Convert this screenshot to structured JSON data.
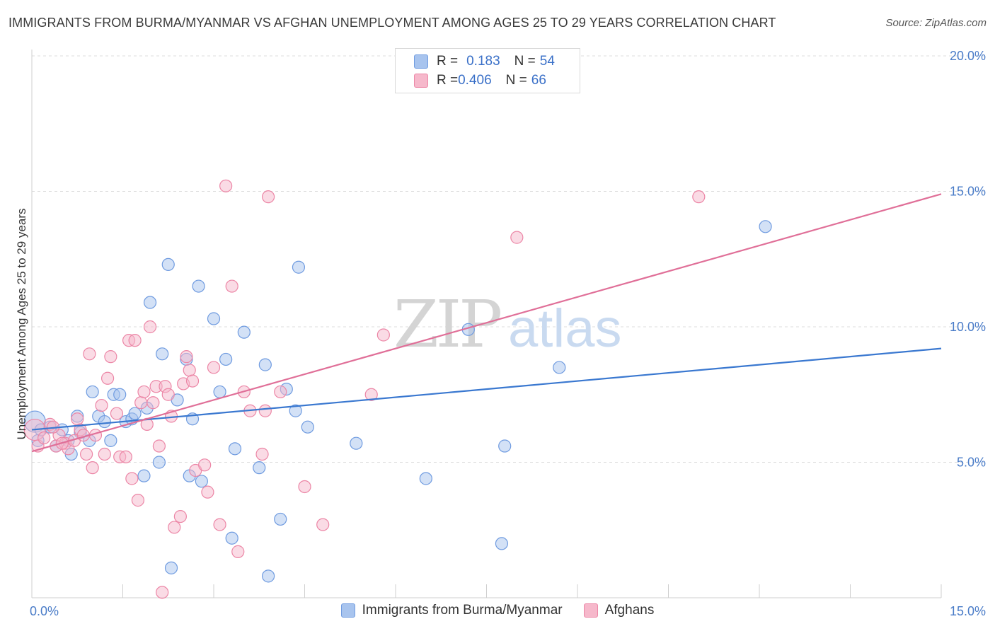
{
  "title": "IMMIGRANTS FROM BURMA/MYANMAR VS AFGHAN UNEMPLOYMENT AMONG AGES 25 TO 29 YEARS CORRELATION CHART",
  "source": "Source: ZipAtlas.com",
  "watermark": {
    "zip": "ZIP",
    "atlas": "atlas"
  },
  "legend": {
    "series1": {
      "r_label": "R = ",
      "r_value": "0.183",
      "n_label": "N = ",
      "n_value": "54",
      "color": "#a8c4ee",
      "stroke": "#6f9be0"
    },
    "series2": {
      "r_label": "R = ",
      "r_value": "0.406",
      "n_label": "N = ",
      "n_value": "66",
      "color": "#f6b8cb",
      "stroke": "#ec86a6"
    }
  },
  "bottom_legend": {
    "series1": "Immigrants from Burma/Myanmar",
    "series2": "Afghans"
  },
  "chart_data": {
    "type": "scatter",
    "xlabel": "",
    "ylabel": "Unemployment Among Ages 25 to 29 years",
    "xlim": [
      0,
      15
    ],
    "ylim": [
      0,
      20
    ],
    "x_tick_labels": [
      "0.0%",
      "15.0%"
    ],
    "y_ticks": [
      5,
      10,
      15,
      20
    ],
    "y_tick_labels": [
      "5.0%",
      "10.0%",
      "15.0%",
      "20.0%"
    ],
    "grid": true,
    "series": [
      {
        "name": "Immigrants from Burma/Myanmar",
        "color": "#a8c4ee",
        "stroke": "#6f9be0",
        "trend": {
          "x": [
            0,
            15
          ],
          "y": [
            6.2,
            9.2
          ],
          "color": "#3a78d0"
        },
        "points": [
          [
            0.05,
            6.5
          ],
          [
            0.1,
            5.8
          ],
          [
            0.15,
            6.2
          ],
          [
            0.3,
            6.3
          ],
          [
            0.4,
            5.6
          ],
          [
            0.5,
            6.2
          ],
          [
            0.6,
            5.8
          ],
          [
            0.65,
            5.3
          ],
          [
            0.75,
            6.7
          ],
          [
            0.8,
            6.1
          ],
          [
            0.95,
            5.8
          ],
          [
            1.0,
            7.6
          ],
          [
            1.1,
            6.7
          ],
          [
            1.2,
            6.5
          ],
          [
            1.3,
            5.8
          ],
          [
            1.35,
            7.5
          ],
          [
            1.45,
            7.5
          ],
          [
            1.55,
            6.5
          ],
          [
            1.65,
            6.6
          ],
          [
            1.7,
            6.8
          ],
          [
            1.85,
            4.5
          ],
          [
            1.9,
            7.0
          ],
          [
            1.95,
            10.9
          ],
          [
            2.1,
            5.0
          ],
          [
            2.15,
            9.0
          ],
          [
            2.25,
            12.3
          ],
          [
            2.3,
            1.1
          ],
          [
            2.4,
            7.3
          ],
          [
            2.55,
            8.8
          ],
          [
            2.6,
            4.5
          ],
          [
            2.65,
            6.6
          ],
          [
            2.75,
            11.5
          ],
          [
            2.8,
            4.3
          ],
          [
            3.0,
            10.3
          ],
          [
            3.1,
            7.6
          ],
          [
            3.2,
            8.8
          ],
          [
            3.3,
            2.2
          ],
          [
            3.35,
            5.5
          ],
          [
            3.5,
            9.8
          ],
          [
            3.75,
            4.8
          ],
          [
            3.85,
            8.6
          ],
          [
            3.9,
            0.8
          ],
          [
            4.1,
            2.9
          ],
          [
            4.2,
            7.7
          ],
          [
            4.35,
            6.9
          ],
          [
            4.4,
            12.2
          ],
          [
            4.55,
            6.3
          ],
          [
            5.35,
            5.7
          ],
          [
            6.5,
            4.4
          ],
          [
            7.2,
            9.9
          ],
          [
            7.75,
            2.0
          ],
          [
            7.8,
            5.6
          ],
          [
            8.7,
            8.5
          ],
          [
            12.1,
            13.7
          ]
        ]
      },
      {
        "name": "Afghans",
        "color": "#f6b8cb",
        "stroke": "#ec86a6",
        "trend": {
          "x": [
            0,
            15
          ],
          "y": [
            5.4,
            14.9
          ],
          "color": "#e06f98"
        },
        "points": [
          [
            0.05,
            6.2
          ],
          [
            0.1,
            5.6
          ],
          [
            0.2,
            5.9
          ],
          [
            0.3,
            6.4
          ],
          [
            0.4,
            5.6
          ],
          [
            0.45,
            6.0
          ],
          [
            0.55,
            5.7
          ],
          [
            0.6,
            5.5
          ],
          [
            0.7,
            5.8
          ],
          [
            0.75,
            6.6
          ],
          [
            0.8,
            6.2
          ],
          [
            0.85,
            6.0
          ],
          [
            0.9,
            5.3
          ],
          [
            0.95,
            9.0
          ],
          [
            1.0,
            4.8
          ],
          [
            1.05,
            6.0
          ],
          [
            1.15,
            7.1
          ],
          [
            1.2,
            5.3
          ],
          [
            1.25,
            8.1
          ],
          [
            1.3,
            8.9
          ],
          [
            1.4,
            6.8
          ],
          [
            1.45,
            5.2
          ],
          [
            1.55,
            5.2
          ],
          [
            1.6,
            9.5
          ],
          [
            1.65,
            4.4
          ],
          [
            1.7,
            9.5
          ],
          [
            1.75,
            3.6
          ],
          [
            1.8,
            7.2
          ],
          [
            1.85,
            7.6
          ],
          [
            1.9,
            6.4
          ],
          [
            1.95,
            10.0
          ],
          [
            2.0,
            7.2
          ],
          [
            2.05,
            7.8
          ],
          [
            2.1,
            5.6
          ],
          [
            2.15,
            0.2
          ],
          [
            2.2,
            7.8
          ],
          [
            2.25,
            7.5
          ],
          [
            2.3,
            6.7
          ],
          [
            2.35,
            2.6
          ],
          [
            2.45,
            3.0
          ],
          [
            2.5,
            7.9
          ],
          [
            2.55,
            8.9
          ],
          [
            2.6,
            8.4
          ],
          [
            2.65,
            8.0
          ],
          [
            2.7,
            4.7
          ],
          [
            2.85,
            4.9
          ],
          [
            2.9,
            3.9
          ],
          [
            3.0,
            8.5
          ],
          [
            3.1,
            2.7
          ],
          [
            3.2,
            15.2
          ],
          [
            3.3,
            11.5
          ],
          [
            3.4,
            1.7
          ],
          [
            3.5,
            7.6
          ],
          [
            3.6,
            6.9
          ],
          [
            3.8,
            5.3
          ],
          [
            3.85,
            6.9
          ],
          [
            3.9,
            14.8
          ],
          [
            4.1,
            7.6
          ],
          [
            4.5,
            4.1
          ],
          [
            4.8,
            2.7
          ],
          [
            5.6,
            7.5
          ],
          [
            5.8,
            9.7
          ],
          [
            8.0,
            13.3
          ],
          [
            11.0,
            14.8
          ],
          [
            0.35,
            6.3
          ],
          [
            0.5,
            5.7
          ]
        ]
      }
    ]
  }
}
